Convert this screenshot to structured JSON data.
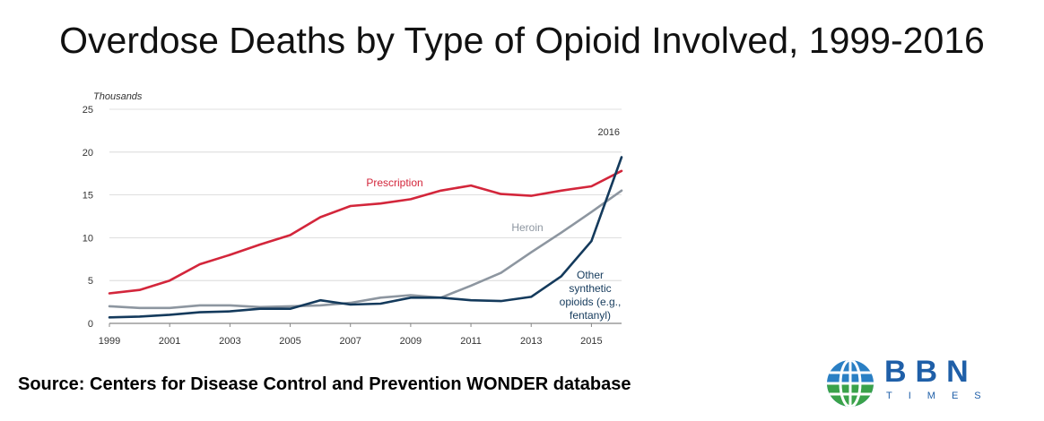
{
  "page": {
    "title": "Overdose Deaths by Type of Opioid Involved, 1999-2016",
    "source": "Source: Centers for Disease Control and Prevention WONDER database"
  },
  "logo": {
    "text": "BBN",
    "subtext": "TIMES",
    "color": "#1f5fa8"
  },
  "chart_data": {
    "type": "line",
    "title": "",
    "unit_label": "Thousands",
    "annotation": "2016",
    "x": [
      1999,
      2000,
      2001,
      2002,
      2003,
      2004,
      2005,
      2006,
      2007,
      2008,
      2009,
      2010,
      2011,
      2012,
      2013,
      2014,
      2015,
      2016
    ],
    "xticks": [
      "1999",
      "2001",
      "2003",
      "2005",
      "2007",
      "2009",
      "2011",
      "2013",
      "2015"
    ],
    "xtick_values": [
      1999,
      2001,
      2003,
      2005,
      2007,
      2009,
      2011,
      2013,
      2015
    ],
    "yticks": [
      "0",
      "5",
      "10",
      "15",
      "20",
      "25"
    ],
    "ytick_values": [
      0,
      5,
      10,
      15,
      20,
      25
    ],
    "xlim": [
      1999,
      2016
    ],
    "ylim": [
      0,
      25
    ],
    "grid": "horizontal",
    "series": [
      {
        "name": "Prescription",
        "label_lines": [
          "Prescription"
        ],
        "color": "#d3263b",
        "values": [
          3.5,
          3.9,
          5.0,
          6.9,
          8.0,
          9.2,
          10.3,
          12.4,
          13.7,
          14.0,
          14.5,
          15.5,
          16.1,
          15.1,
          14.9,
          15.5,
          16.0,
          17.8
        ]
      },
      {
        "name": "Heroin",
        "label_lines": [
          "Heroin"
        ],
        "color": "#8d96a0",
        "values": [
          2.0,
          1.8,
          1.8,
          2.1,
          2.1,
          1.9,
          2.0,
          2.1,
          2.4,
          3.0,
          3.3,
          3.0,
          4.4,
          5.9,
          8.3,
          10.6,
          13.0,
          15.5
        ]
      },
      {
        "name": "Other synthetic opioids (e.g., fentanyl)",
        "label_lines": [
          "Other",
          "synthetic",
          "opioids (e.g.,",
          "fentanyl)"
        ],
        "color": "#143a5c",
        "values": [
          0.7,
          0.8,
          1.0,
          1.3,
          1.4,
          1.7,
          1.7,
          2.7,
          2.2,
          2.3,
          3.0,
          3.0,
          2.7,
          2.6,
          3.1,
          5.5,
          9.6,
          19.4
        ]
      }
    ]
  }
}
